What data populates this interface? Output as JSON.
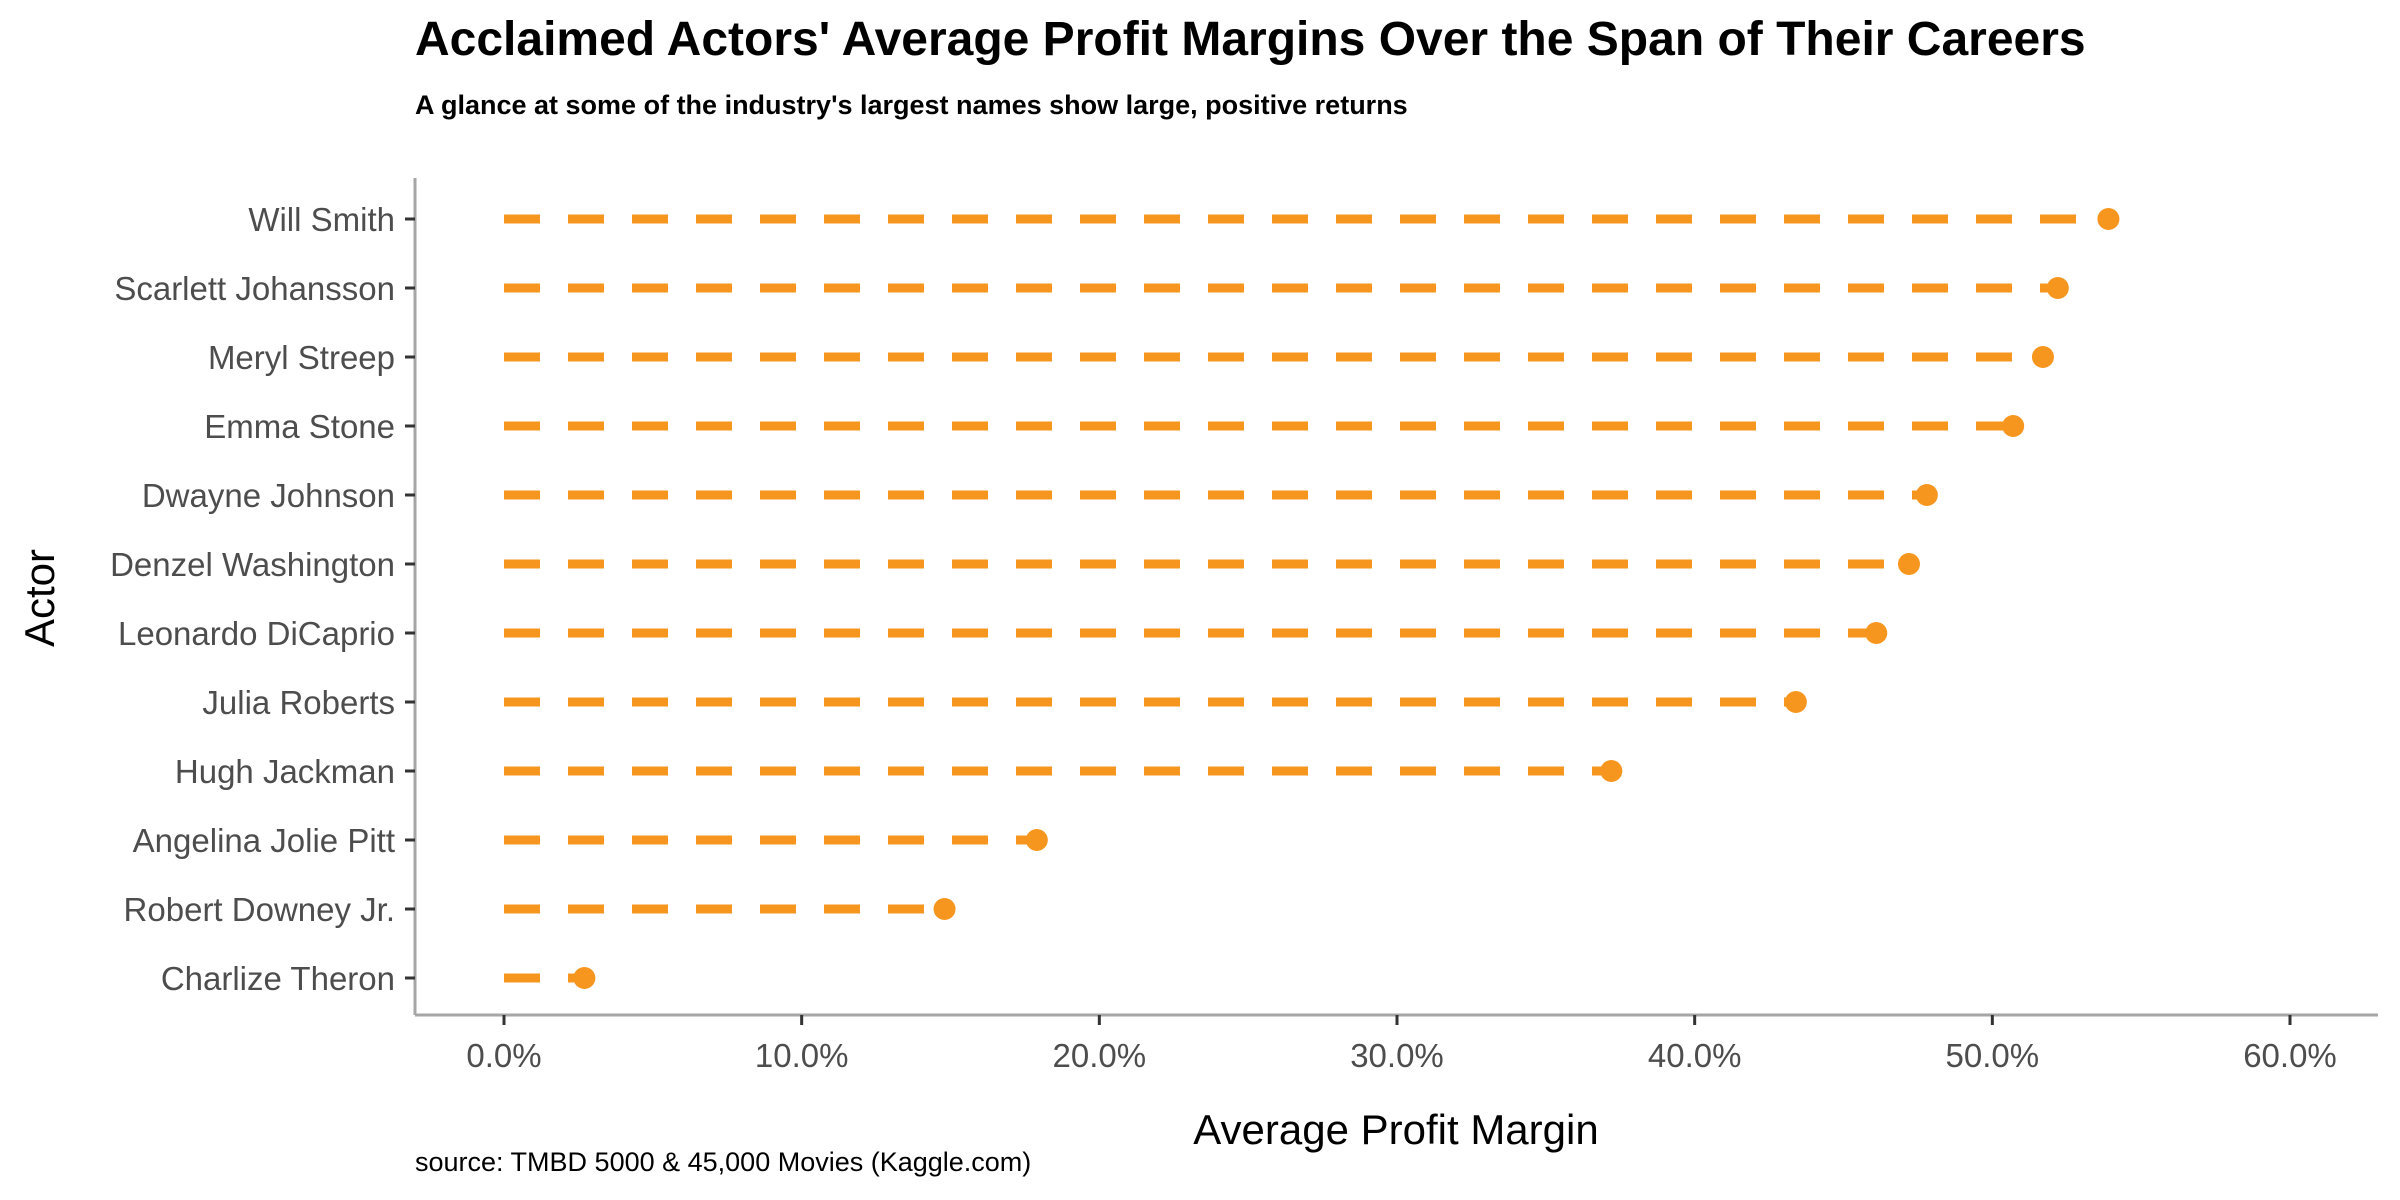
{
  "chart_data": {
    "type": "lollipop",
    "title": "Acclaimed Actors' Average Profit Margins Over the Span of Their Careers",
    "subtitle": "A glance at some of the industry's largest names show large, positive returns",
    "xlabel": "Average Profit Margin",
    "ylabel": "Actor",
    "caption": "source: TMBD 5000 & 45,000 Movies (Kaggle.com)",
    "xlim": [
      0,
      0.6
    ],
    "x_ticks": [
      0,
      0.1,
      0.2,
      0.3,
      0.4,
      0.5,
      0.6
    ],
    "x_tick_labels": [
      "0.0%",
      "10.0%",
      "20.0%",
      "30.0%",
      "40.0%",
      "50.0%",
      "60.0%"
    ],
    "grid": false,
    "line_style": "dashed",
    "categories": [
      "Will Smith",
      "Scarlett Johansson",
      "Meryl Streep",
      "Emma Stone",
      "Dwayne Johnson",
      "Denzel Washington",
      "Leonardo DiCaprio",
      "Julia Roberts",
      "Hugh Jackman",
      "Angelina Jolie Pitt",
      "Robert Downey Jr.",
      "Charlize Theron"
    ],
    "values": [
      0.539,
      0.522,
      0.517,
      0.507,
      0.478,
      0.472,
      0.461,
      0.434,
      0.372,
      0.179,
      0.148,
      0.027
    ],
    "colors": {
      "point": "#F7961E",
      "axis": "#A6A6A6",
      "tick_text": "#4D4D4D"
    }
  }
}
